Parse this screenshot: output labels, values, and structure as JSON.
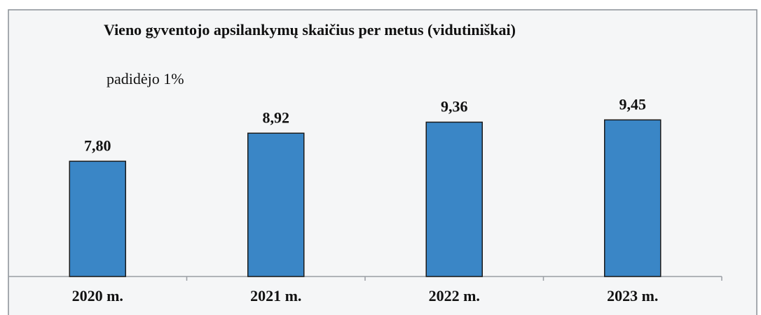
{
  "chart_data": {
    "type": "bar",
    "title": "Vieno gyventojo apsilankymų skaičius per metus (vidutiniškai)",
    "annotation": "padidėjo 1%",
    "categories": [
      "2020 m.",
      "2021 m.",
      "2022 m.",
      "2023 m."
    ],
    "values": [
      7.8,
      8.92,
      9.36,
      9.45
    ],
    "value_labels": [
      "7,80",
      "8,92",
      "9,36",
      "9,45"
    ],
    "color": "#3a86c6",
    "ylim": [
      3.2,
      12
    ]
  }
}
